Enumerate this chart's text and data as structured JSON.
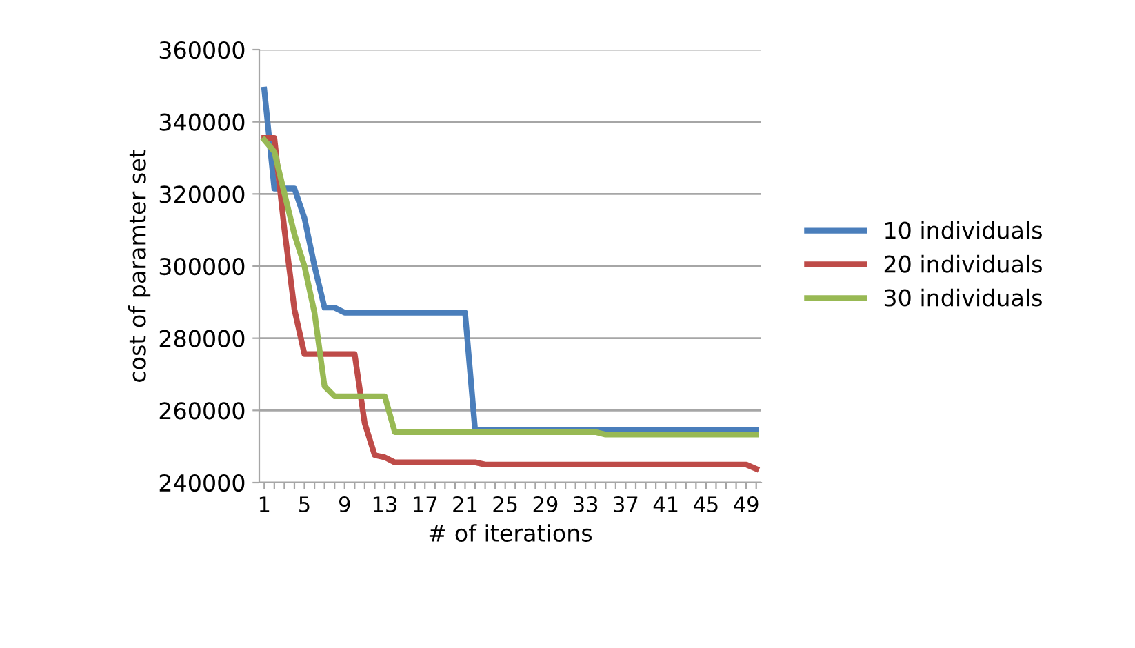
{
  "chart_data": {
    "type": "line",
    "xlabel": "# of iterations",
    "ylabel": "cost of paramter set",
    "categories": [
      "1",
      null,
      null,
      null,
      "5",
      null,
      null,
      null,
      "9",
      null,
      null,
      null,
      "13",
      null,
      null,
      null,
      "17",
      null,
      null,
      null,
      "21",
      null,
      null,
      null,
      "25",
      null,
      null,
      null,
      "29",
      null,
      null,
      null,
      "33",
      null,
      null,
      null,
      "37",
      null,
      null,
      null,
      "41",
      null,
      null,
      null,
      "45",
      null,
      null,
      null,
      "49",
      null
    ],
    "ylim": [
      240000,
      360000
    ],
    "yticks": [
      240000,
      260000,
      280000,
      300000,
      320000,
      340000,
      360000
    ],
    "grid": "y",
    "legend": "right",
    "marker": "none",
    "line_style": "solid",
    "series": [
      {
        "name": "10 individuals",
        "color": "#4a7ebb",
        "values": [
          348900,
          321500,
          321500,
          321500,
          313300,
          300000,
          288500,
          288500,
          287100,
          287100,
          287100,
          287100,
          287100,
          287100,
          287100,
          287100,
          287100,
          287100,
          287100,
          287100,
          287100,
          254500,
          254500,
          254500,
          254500,
          254500,
          254500,
          254500,
          254500,
          254500,
          254500,
          254500,
          254500,
          254500,
          254500,
          254500,
          254500,
          254500,
          254500,
          254500,
          254500,
          254500,
          254500,
          254500,
          254500,
          254500,
          254500,
          254500,
          254500,
          254500
        ]
      },
      {
        "name": "20 individuals",
        "color": "#be4b48",
        "values": [
          335500,
          335500,
          310300,
          288000,
          275600,
          275600,
          275600,
          275600,
          275600,
          275600,
          256500,
          247600,
          247000,
          245600,
          245600,
          245600,
          245600,
          245600,
          245600,
          245600,
          245600,
          245600,
          245000,
          245000,
          245000,
          245000,
          245000,
          245000,
          245000,
          245000,
          245000,
          245000,
          245000,
          245000,
          245000,
          245000,
          245000,
          245000,
          245000,
          245000,
          245000,
          245000,
          245000,
          245000,
          245000,
          245000,
          245000,
          245000,
          245000,
          243800
        ]
      },
      {
        "name": "30 individuals",
        "color": "#98b954",
        "values": [
          335000,
          331700,
          320200,
          308800,
          300000,
          287100,
          266700,
          263900,
          263900,
          263900,
          263900,
          263900,
          263900,
          254000,
          254000,
          254000,
          254000,
          254000,
          254000,
          254000,
          254000,
          254000,
          254000,
          254000,
          254000,
          254000,
          254000,
          254000,
          254000,
          254000,
          254000,
          254000,
          254000,
          254000,
          253300,
          253300,
          253300,
          253300,
          253300,
          253300,
          253300,
          253300,
          253300,
          253300,
          253300,
          253300,
          253300,
          253300,
          253300,
          253300
        ]
      }
    ]
  }
}
